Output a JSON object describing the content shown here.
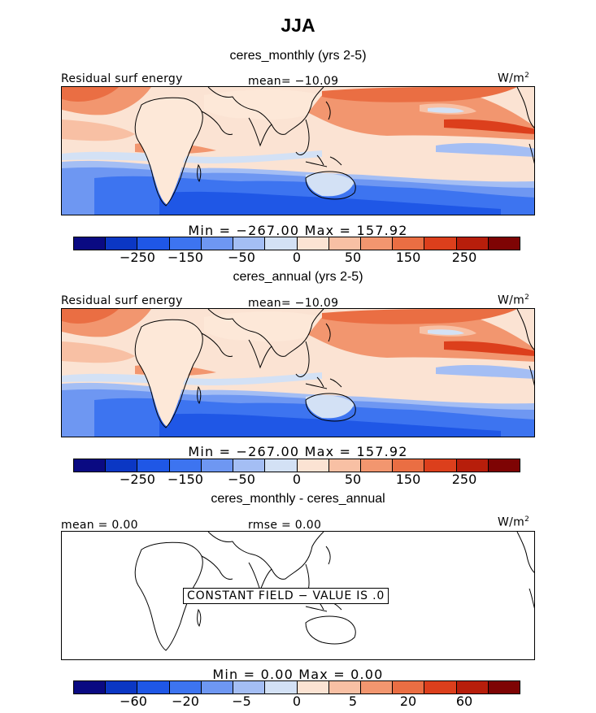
{
  "title": "JJA",
  "panels": [
    {
      "title": "ceres_monthly (yrs 2-5)",
      "left_label": "Residual surf energy",
      "center_label": "mean= −10.09",
      "units": "W/m",
      "units_exp": "2",
      "minmax": "Min = −267.00 Max = 157.92",
      "colorbar_ticks": [
        "−250",
        "−150",
        "−50",
        "0",
        "50",
        "150",
        "250"
      ]
    },
    {
      "title": "ceres_annual (yrs 2-5)",
      "left_label": "Residual surf energy",
      "center_label": "mean= −10.09",
      "units": "W/m",
      "units_exp": "2",
      "minmax": "Min = −267.00 Max = 157.92",
      "colorbar_ticks": [
        "−250",
        "−150",
        "−50",
        "0",
        "50",
        "150",
        "250"
      ]
    },
    {
      "title": "ceres_monthly - ceres_annual",
      "left_label": "mean = 0.00",
      "center_label": "rmse = 0.00",
      "units": "W/m",
      "units_exp": "2",
      "note": "CONSTANT FIELD − VALUE IS .0",
      "minmax": "Min = 0.00 Max = 0.00",
      "colorbar_ticks": [
        "−60",
        "−20",
        "−5",
        "0",
        "5",
        "20",
        "60"
      ]
    }
  ],
  "colorbar_colors": [
    "#0a0a82",
    "#0b37c4",
    "#1f57e6",
    "#3d74f0",
    "#6e97f2",
    "#a4bef4",
    "#d3e1f5",
    "#fbe3d3",
    "#f8c0a4",
    "#f2966f",
    "#ea6e43",
    "#dc3f1c",
    "#b71e0b",
    "#7e0404"
  ]
}
